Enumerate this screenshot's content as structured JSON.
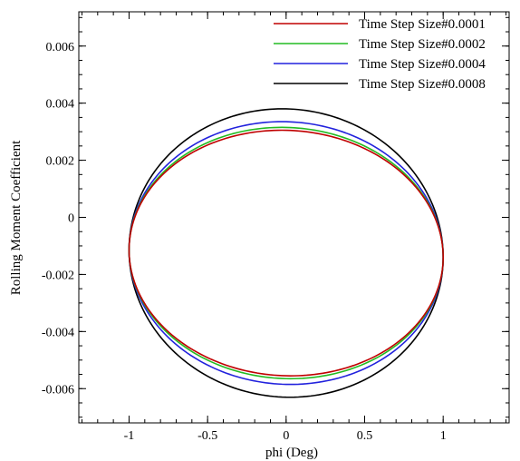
{
  "chart_data": {
    "type": "line",
    "title": "",
    "xlabel": "phi (Deg)",
    "ylabel": "Rolling Moment Coefficient",
    "xlim": [
      -1.32,
      1.42
    ],
    "ylim": [
      -0.0072,
      0.0072
    ],
    "xticks": [
      -1,
      -0.5,
      0,
      0.5,
      1
    ],
    "xtick_labels": [
      "-1",
      "-0.5",
      "0",
      "0.5",
      "1"
    ],
    "yticks": [
      -0.006,
      -0.004,
      -0.002,
      0,
      0.002,
      0.004,
      0.006
    ],
    "ytick_labels": [
      "-0.006",
      "-0.004",
      "-0.002",
      "0",
      "0.002",
      "0.004",
      "0.006"
    ],
    "grid": false,
    "legend_position": "top-right",
    "series": [
      {
        "name": "Time Step Size#0.0001",
        "color": "#c00000",
        "center_x": 0.0,
        "amplitude_x": 1.0,
        "top": 0.00305,
        "bottom": -0.00555,
        "y_at_x_min": -0.00115,
        "y_at_x_max": -0.0014
      },
      {
        "name": "Time Step Size#0.0002",
        "color": "#22bb22",
        "center_x": 0.0,
        "amplitude_x": 1.0,
        "top": 0.00315,
        "bottom": -0.00565,
        "y_at_x_min": -0.00115,
        "y_at_x_max": -0.0014
      },
      {
        "name": "Time Step Size#0.0004",
        "color": "#2222dd",
        "center_x": 0.0,
        "amplitude_x": 1.0,
        "top": 0.00335,
        "bottom": -0.00585,
        "y_at_x_min": -0.00115,
        "y_at_x_max": -0.0014
      },
      {
        "name": "Time Step Size#0.0008",
        "color": "#000000",
        "center_x": 0.0,
        "amplitude_x": 1.0,
        "top": 0.0038,
        "bottom": -0.0063,
        "y_at_x_min": -0.00115,
        "y_at_x_max": -0.0014
      }
    ]
  }
}
